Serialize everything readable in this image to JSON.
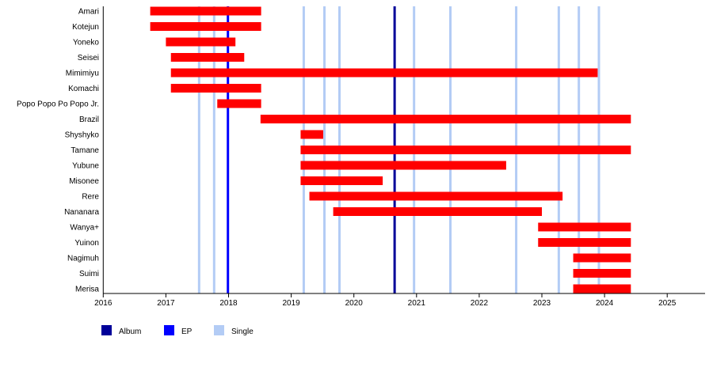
{
  "chart_data": {
    "type": "timeline",
    "title": "",
    "xlim": [
      2016,
      2025.63
    ],
    "x_ticks": [
      "2016",
      "2017",
      "2018",
      "2019",
      "2020",
      "2021",
      "2022",
      "2023",
      "2024",
      "2025"
    ],
    "grid": false,
    "legend_placement": "bottom-left",
    "colors": {
      "bar": "#ff0000",
      "album": "#000099",
      "ep": "#0000ff",
      "single": "#b3ccf5"
    },
    "legend": [
      {
        "label": "Album",
        "kind": "album"
      },
      {
        "label": "EP",
        "kind": "ep"
      },
      {
        "label": "Single",
        "kind": "single"
      }
    ],
    "members": [
      {
        "name": "Amari",
        "start": 2016.75,
        "end": 2018.52
      },
      {
        "name": "Kotejun",
        "start": 2016.75,
        "end": 2018.52
      },
      {
        "name": "Yoneko",
        "start": 2017.0,
        "end": 2018.11
      },
      {
        "name": "Seisei",
        "start": 2017.08,
        "end": 2018.25
      },
      {
        "name": "Mimimiyu",
        "start": 2017.08,
        "end": 2023.89
      },
      {
        "name": "Komachi",
        "start": 2017.08,
        "end": 2018.52
      },
      {
        "name": "Popo Popo Po Popo Jr.",
        "start": 2017.82,
        "end": 2018.52
      },
      {
        "name": "Brazil",
        "start": 2018.51,
        "end": 2024.42
      },
      {
        "name": "Shyshyko",
        "start": 2019.15,
        "end": 2019.51
      },
      {
        "name": "Tamane",
        "start": 2019.15,
        "end": 2024.42
      },
      {
        "name": "Yubune",
        "start": 2019.15,
        "end": 2022.43
      },
      {
        "name": "Misonee",
        "start": 2019.15,
        "end": 2020.46
      },
      {
        "name": "Rere",
        "start": 2019.29,
        "end": 2023.33
      },
      {
        "name": "Nananara",
        "start": 2019.67,
        "end": 2023.0
      },
      {
        "name": "Wanya+",
        "start": 2022.94,
        "end": 2024.42
      },
      {
        "name": "Yuinon",
        "start": 2022.94,
        "end": 2024.42
      },
      {
        "name": "Nagimuh",
        "start": 2023.5,
        "end": 2024.42
      },
      {
        "name": "Suimi",
        "start": 2023.5,
        "end": 2024.42
      },
      {
        "name": "Merisa",
        "start": 2023.5,
        "end": 2024.42
      }
    ],
    "releases": [
      {
        "kind": "single",
        "date": 2017.53
      },
      {
        "kind": "single",
        "date": 2017.77
      },
      {
        "kind": "ep",
        "date": 2017.99
      },
      {
        "kind": "single",
        "date": 2019.2
      },
      {
        "kind": "single",
        "date": 2019.53
      },
      {
        "kind": "single",
        "date": 2019.77
      },
      {
        "kind": "album",
        "date": 2020.65
      },
      {
        "kind": "single",
        "date": 2020.96
      },
      {
        "kind": "single",
        "date": 2021.54
      },
      {
        "kind": "single",
        "date": 2022.59
      },
      {
        "kind": "single",
        "date": 2023.27
      },
      {
        "kind": "single",
        "date": 2023.59
      },
      {
        "kind": "single",
        "date": 2023.91
      }
    ]
  }
}
